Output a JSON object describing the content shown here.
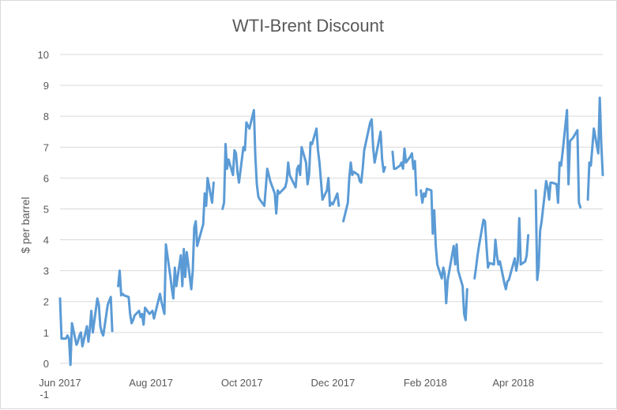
{
  "chart_data": {
    "type": "line",
    "title": "WTI-Brent Discount",
    "xlabel": "",
    "ylabel": "$ per barrel",
    "ylim": [
      -1,
      10
    ],
    "yticks": [
      "10",
      "9",
      "8",
      "7",
      "6",
      "5",
      "4",
      "3",
      "2",
      "1",
      "0",
      "-1"
    ],
    "ytick_values": [
      10,
      9,
      8,
      7,
      6,
      5,
      4,
      3,
      2,
      1,
      0,
      -1
    ],
    "xticks": [
      "Jun 2017",
      "Aug 2017",
      "Oct 2017",
      "Dec 2017",
      "Feb 2018",
      "Apr 2018"
    ],
    "xtick_dates": [
      "2017-06-01",
      "2017-08-01",
      "2017-10-01",
      "2017-12-01",
      "2018-02-01",
      "2018-04-01"
    ],
    "xlim": [
      "2017-06-01",
      "2018-05-31"
    ],
    "grid": true,
    "legend": "none",
    "series": [
      {
        "color": "#5b9bd5",
        "segments": [
          [
            [
              "2017-06-01",
              2.1
            ],
            [
              "2017-06-02",
              0.8
            ],
            [
              "2017-06-05",
              0.8
            ],
            [
              "2017-06-06",
              0.9
            ],
            [
              "2017-06-07",
              0.8
            ],
            [
              "2017-06-08",
              -0.05
            ],
            [
              "2017-06-09",
              1.3
            ],
            [
              "2017-06-12",
              0.6
            ],
            [
              "2017-06-13",
              0.7
            ],
            [
              "2017-06-14",
              0.9
            ],
            [
              "2017-06-15",
              1.0
            ],
            [
              "2017-06-16",
              0.55
            ],
            [
              "2017-06-19",
              1.2
            ],
            [
              "2017-06-20",
              0.7
            ],
            [
              "2017-06-21",
              1.1
            ],
            [
              "2017-06-22",
              1.7
            ],
            [
              "2017-06-23",
              1.0
            ],
            [
              "2017-06-26",
              2.1
            ],
            [
              "2017-06-27",
              1.9
            ],
            [
              "2017-06-28",
              1.2
            ],
            [
              "2017-06-29",
              1.0
            ],
            [
              "2017-06-30",
              0.9
            ],
            [
              "2017-07-03",
              1.9
            ],
            [
              "2017-07-05",
              2.15
            ],
            [
              "2017-07-06",
              1.05
            ]
          ],
          [
            [
              "2017-07-10",
              2.5
            ],
            [
              "2017-07-11",
              3.0
            ],
            [
              "2017-07-12",
              2.2
            ],
            [
              "2017-07-13",
              2.25
            ],
            [
              "2017-07-14",
              2.2
            ],
            [
              "2017-07-17",
              2.15
            ],
            [
              "2017-07-18",
              1.6
            ],
            [
              "2017-07-19",
              1.3
            ],
            [
              "2017-07-20",
              1.4
            ],
            [
              "2017-07-21",
              1.55
            ],
            [
              "2017-07-24",
              1.7
            ],
            [
              "2017-07-25",
              1.5
            ],
            [
              "2017-07-26",
              1.6
            ],
            [
              "2017-07-27",
              1.25
            ],
            [
              "2017-07-28",
              1.8
            ],
            [
              "2017-07-31",
              1.6
            ],
            [
              "2017-08-01",
              1.65
            ],
            [
              "2017-08-02",
              1.7
            ],
            [
              "2017-08-03",
              1.45
            ],
            [
              "2017-08-04",
              1.65
            ],
            [
              "2017-08-07",
              2.25
            ],
            [
              "2017-08-08",
              2.0
            ],
            [
              "2017-08-09",
              1.8
            ],
            [
              "2017-08-10",
              1.6
            ],
            [
              "2017-08-11",
              3.85
            ],
            [
              "2017-08-14",
              2.8
            ],
            [
              "2017-08-15",
              2.4
            ],
            [
              "2017-08-16",
              2.1
            ],
            [
              "2017-08-17",
              3.1
            ],
            [
              "2017-08-18",
              2.5
            ],
            [
              "2017-08-21",
              3.5
            ],
            [
              "2017-08-22",
              2.5
            ],
            [
              "2017-08-23",
              3.7
            ],
            [
              "2017-08-24",
              2.8
            ],
            [
              "2017-08-25",
              3.6
            ],
            [
              "2017-08-28",
              2.4
            ],
            [
              "2017-08-29",
              3.0
            ],
            [
              "2017-08-30",
              4.4
            ],
            [
              "2017-08-31",
              4.6
            ],
            [
              "2017-09-01",
              3.8
            ],
            [
              "2017-09-05",
              4.5
            ],
            [
              "2017-09-06",
              5.5
            ],
            [
              "2017-09-07",
              5.1
            ],
            [
              "2017-09-08",
              6.0
            ],
            [
              "2017-09-11",
              5.2
            ],
            [
              "2017-09-12",
              5.85
            ]
          ],
          [
            [
              "2017-09-18",
              5.0
            ],
            [
              "2017-09-19",
              5.2
            ],
            [
              "2017-09-20",
              7.1
            ],
            [
              "2017-09-21",
              6.3
            ],
            [
              "2017-09-22",
              6.6
            ],
            [
              "2017-09-25",
              6.1
            ],
            [
              "2017-09-26",
              6.9
            ],
            [
              "2017-09-27",
              6.8
            ],
            [
              "2017-09-28",
              6.2
            ],
            [
              "2017-09-29",
              5.85
            ],
            [
              "2017-10-02",
              7.0
            ],
            [
              "2017-10-03",
              6.9
            ],
            [
              "2017-10-04",
              7.8
            ],
            [
              "2017-10-05",
              7.7
            ],
            [
              "2017-10-06",
              7.6
            ],
            [
              "2017-10-09",
              8.2
            ],
            [
              "2017-10-10",
              6.7
            ],
            [
              "2017-10-11",
              5.8
            ],
            [
              "2017-10-12",
              5.4
            ],
            [
              "2017-10-13",
              5.3
            ],
            [
              "2017-10-16",
              5.1
            ],
            [
              "2017-10-17",
              5.7
            ],
            [
              "2017-10-18",
              6.3
            ],
            [
              "2017-10-19",
              6.1
            ],
            [
              "2017-10-20",
              5.9
            ],
            [
              "2017-10-23",
              5.5
            ],
            [
              "2017-10-24",
              4.85
            ],
            [
              "2017-10-25",
              5.6
            ],
            [
              "2017-10-26",
              5.5
            ],
            [
              "2017-10-27",
              5.55
            ],
            [
              "2017-10-30",
              5.7
            ],
            [
              "2017-10-31",
              5.9
            ],
            [
              "2017-11-01",
              6.5
            ],
            [
              "2017-11-02",
              6.1
            ],
            [
              "2017-11-03",
              6.0
            ],
            [
              "2017-11-06",
              5.7
            ],
            [
              "2017-11-07",
              6.3
            ],
            [
              "2017-11-08",
              6.4
            ],
            [
              "2017-11-09",
              6.1
            ],
            [
              "2017-11-10",
              7.0
            ],
            [
              "2017-11-13",
              6.5
            ],
            [
              "2017-11-14",
              5.8
            ],
            [
              "2017-11-15",
              6.1
            ],
            [
              "2017-11-16",
              7.15
            ],
            [
              "2017-11-17",
              7.1
            ],
            [
              "2017-11-20",
              7.6
            ],
            [
              "2017-11-21",
              6.9
            ],
            [
              "2017-11-22",
              6.5
            ],
            [
              "2017-11-24",
              5.3
            ],
            [
              "2017-11-27",
              5.6
            ],
            [
              "2017-11-28",
              6.0
            ],
            [
              "2017-11-29",
              5.1
            ],
            [
              "2017-11-30",
              5.2
            ],
            [
              "2017-12-01",
              5.15
            ],
            [
              "2017-12-04",
              5.5
            ],
            [
              "2017-12-05",
              5.1
            ]
          ],
          [
            [
              "2017-12-08",
              4.6
            ],
            [
              "2017-12-11",
              5.2
            ],
            [
              "2017-12-12",
              6.0
            ],
            [
              "2017-12-13",
              6.5
            ],
            [
              "2017-12-14",
              6.1
            ],
            [
              "2017-12-15",
              6.2
            ],
            [
              "2017-12-18",
              6.1
            ],
            [
              "2017-12-19",
              5.9
            ],
            [
              "2017-12-20",
              5.85
            ],
            [
              "2017-12-21",
              6.3
            ],
            [
              "2017-12-22",
              6.9
            ],
            [
              "2017-12-26",
              7.8
            ],
            [
              "2017-12-27",
              7.9
            ],
            [
              "2017-12-28",
              7.0
            ],
            [
              "2017-12-29",
              6.5
            ],
            [
              "2018-01-02",
              7.5
            ],
            [
              "2018-01-03",
              6.6
            ],
            [
              "2018-01-04",
              6.2
            ],
            [
              "2018-01-05",
              6.35
            ]
          ],
          [
            [
              "2018-01-10",
              6.85
            ],
            [
              "2018-01-11",
              6.3
            ],
            [
              "2018-01-12",
              6.3
            ],
            [
              "2018-01-15",
              6.4
            ],
            [
              "2018-01-16",
              6.5
            ],
            [
              "2018-01-17",
              6.3
            ],
            [
              "2018-01-18",
              6.95
            ],
            [
              "2018-01-19",
              6.5
            ],
            [
              "2018-01-22",
              6.7
            ],
            [
              "2018-01-23",
              6.8
            ],
            [
              "2018-01-24",
              6.3
            ],
            [
              "2018-01-25",
              6.55
            ],
            [
              "2018-01-26",
              5.45
            ]
          ],
          [
            [
              "2018-01-29",
              5.6
            ],
            [
              "2018-01-30",
              5.2
            ],
            [
              "2018-01-31",
              5.5
            ],
            [
              "2018-02-01",
              5.4
            ],
            [
              "2018-02-02",
              5.65
            ],
            [
              "2018-02-05",
              5.6
            ],
            [
              "2018-02-06",
              4.2
            ],
            [
              "2018-02-07",
              4.95
            ],
            [
              "2018-02-08",
              3.8
            ],
            [
              "2018-02-09",
              3.2
            ],
            [
              "2018-02-12",
              2.75
            ],
            [
              "2018-02-13",
              3.1
            ],
            [
              "2018-02-14",
              2.9
            ],
            [
              "2018-02-15",
              1.95
            ],
            [
              "2018-02-16",
              2.7
            ],
            [
              "2018-02-20",
              3.8
            ],
            [
              "2018-02-21",
              3.2
            ],
            [
              "2018-02-22",
              3.85
            ],
            [
              "2018-02-23",
              3.0
            ],
            [
              "2018-02-26",
              2.5
            ],
            [
              "2018-02-27",
              1.6
            ],
            [
              "2018-02-28",
              1.4
            ],
            [
              "2018-03-01",
              2.4
            ]
          ],
          [
            [
              "2018-03-06",
              2.75
            ],
            [
              "2018-03-07",
              3.1
            ],
            [
              "2018-03-08",
              3.5
            ],
            [
              "2018-03-09",
              3.8
            ],
            [
              "2018-03-12",
              4.65
            ],
            [
              "2018-03-13",
              4.6
            ],
            [
              "2018-03-14",
              3.8
            ],
            [
              "2018-03-15",
              3.1
            ],
            [
              "2018-03-16",
              3.25
            ],
            [
              "2018-03-19",
              3.2
            ],
            [
              "2018-03-20",
              4.0
            ],
            [
              "2018-03-21",
              3.5
            ],
            [
              "2018-03-22",
              3.2
            ],
            [
              "2018-03-23",
              3.3
            ],
            [
              "2018-03-26",
              2.6
            ],
            [
              "2018-03-27",
              2.4
            ],
            [
              "2018-03-28",
              2.65
            ],
            [
              "2018-03-29",
              2.7
            ],
            [
              "2018-04-02",
              3.4
            ],
            [
              "2018-04-03",
              3.0
            ],
            [
              "2018-04-04",
              3.3
            ],
            [
              "2018-04-05",
              4.7
            ],
            [
              "2018-04-06",
              3.2
            ],
            [
              "2018-04-09",
              3.3
            ],
            [
              "2018-04-10",
              3.5
            ],
            [
              "2018-04-11",
              4.15
            ]
          ],
          [
            [
              "2018-04-16",
              5.6
            ],
            [
              "2018-04-17",
              2.7
            ],
            [
              "2018-04-18",
              3.1
            ],
            [
              "2018-04-19",
              4.3
            ],
            [
              "2018-04-20",
              4.6
            ],
            [
              "2018-04-23",
              5.9
            ],
            [
              "2018-04-24",
              5.7
            ],
            [
              "2018-04-25",
              5.3
            ],
            [
              "2018-04-26",
              5.85
            ],
            [
              "2018-04-27",
              5.85
            ],
            [
              "2018-04-30",
              5.8
            ],
            [
              "2018-05-01",
              5.2
            ],
            [
              "2018-05-02",
              6.5
            ],
            [
              "2018-05-03",
              6.4
            ],
            [
              "2018-05-04",
              6.8
            ],
            [
              "2018-05-07",
              8.2
            ],
            [
              "2018-05-08",
              5.8
            ],
            [
              "2018-05-09",
              7.2
            ],
            [
              "2018-05-10",
              7.25
            ],
            [
              "2018-05-11",
              7.3
            ],
            [
              "2018-05-14",
              7.55
            ],
            [
              "2018-05-15",
              5.2
            ],
            [
              "2018-05-16",
              5.05
            ]
          ],
          [
            [
              "2018-05-21",
              5.3
            ],
            [
              "2018-05-22",
              6.5
            ],
            [
              "2018-05-23",
              6.4
            ],
            [
              "2018-05-24",
              7.0
            ],
            [
              "2018-05-25",
              7.6
            ],
            [
              "2018-05-28",
              6.8
            ],
            [
              "2018-05-29",
              8.6
            ],
            [
              "2018-05-30",
              7.1
            ],
            [
              "2018-05-31",
              6.1
            ]
          ]
        ]
      }
    ]
  }
}
